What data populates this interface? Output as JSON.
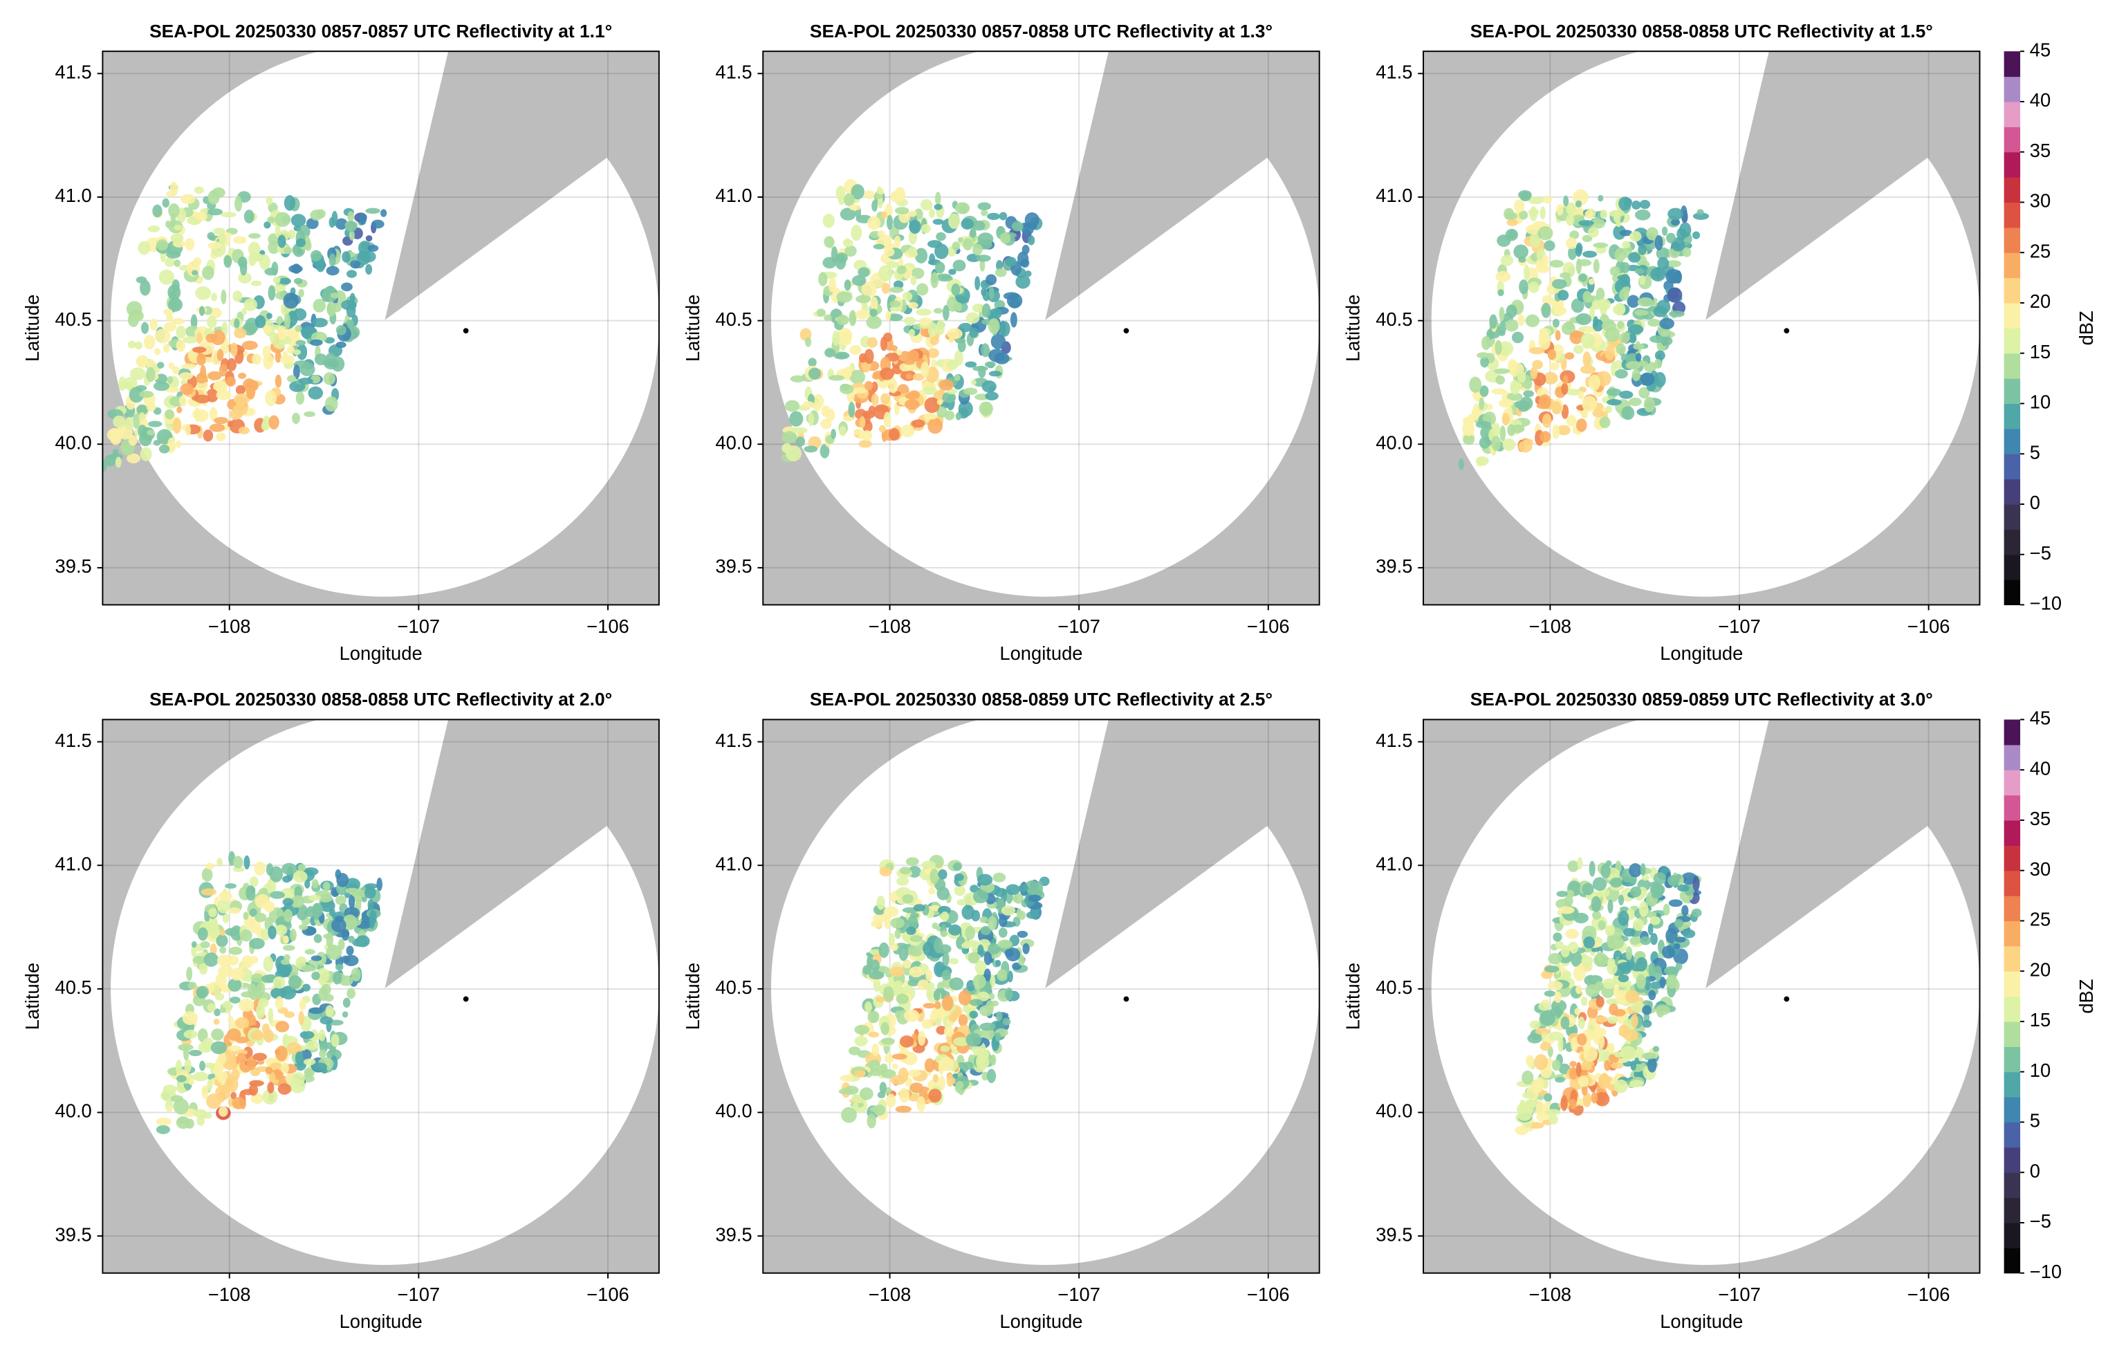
{
  "chart_data": [
    {
      "type": "ppi",
      "title": "SEA-POL 20250330 0857-0857 UTC Reflectivity at 1.1°",
      "xlabel": "Longitude",
      "ylabel": "Latitude",
      "xlim": [
        -108.67,
        -105.73
      ],
      "ylim": [
        39.35,
        41.59
      ],
      "xticks": [
        {
          "value": -108,
          "label": "−108"
        },
        {
          "value": -107,
          "label": "−107"
        },
        {
          "value": -106,
          "label": "−106"
        }
      ],
      "yticks": [
        39.5,
        {
          "value": 40,
          "label": "40.0"
        },
        40.5,
        {
          "value": 41,
          "label": "41.0"
        },
        41.5
      ],
      "grid": true
    },
    {
      "type": "ppi",
      "title": "SEA-POL 20250330 0857-0858 UTC Reflectivity at 1.3°",
      "xlabel": "Longitude",
      "ylabel": "Latitude",
      "xlim": [
        -108.67,
        -105.73
      ],
      "ylim": [
        39.35,
        41.59
      ],
      "xticks": [
        {
          "value": -108,
          "label": "−108"
        },
        {
          "value": -107,
          "label": "−107"
        },
        {
          "value": -106,
          "label": "−106"
        }
      ],
      "yticks": [
        39.5,
        {
          "value": 40,
          "label": "40.0"
        },
        40.5,
        {
          "value": 41,
          "label": "41.0"
        },
        41.5
      ],
      "grid": true
    },
    {
      "type": "ppi",
      "title": "SEA-POL 20250330 0858-0858 UTC Reflectivity at 1.5°",
      "xlabel": "Longitude",
      "ylabel": "Latitude",
      "xlim": [
        -108.67,
        -105.73
      ],
      "ylim": [
        39.35,
        41.59
      ],
      "xticks": [
        {
          "value": -108,
          "label": "−108"
        },
        {
          "value": -107,
          "label": "−107"
        },
        {
          "value": -106,
          "label": "−106"
        }
      ],
      "yticks": [
        39.5,
        {
          "value": 40,
          "label": "40.0"
        },
        40.5,
        {
          "value": 41,
          "label": "41.0"
        },
        41.5
      ],
      "grid": true,
      "colorbar": {
        "label": "dBZ",
        "lim": [
          -10,
          45
        ],
        "ticks": [
          {
            "value": -10,
            "label": "−10"
          },
          {
            "value": -5,
            "label": "−5"
          },
          0,
          5,
          10,
          15,
          20,
          25,
          30,
          35,
          40,
          45
        ],
        "colors": [
          "#050505",
          "#1a1720",
          "#2b2536",
          "#3a3352",
          "#45407a",
          "#4a62a8",
          "#3f86b0",
          "#4fa7a8",
          "#7cc3a2",
          "#b0de9f",
          "#def2a5",
          "#fbf1a6",
          "#fdd483",
          "#f9ad63",
          "#ee8250",
          "#dd5241",
          "#c8323e",
          "#b01a58",
          "#d35795",
          "#e59dc8",
          "#a98ac6",
          "#4a1456"
        ]
      }
    },
    {
      "type": "ppi",
      "title": "SEA-POL 20250330 0858-0858 UTC Reflectivity at 2.0°",
      "xlabel": "Longitude",
      "ylabel": "Latitude",
      "xlim": [
        -108.67,
        -105.73
      ],
      "ylim": [
        39.35,
        41.59
      ],
      "xticks": [
        {
          "value": -108,
          "label": "−108"
        },
        {
          "value": -107,
          "label": "−107"
        },
        {
          "value": -106,
          "label": "−106"
        }
      ],
      "yticks": [
        39.5,
        {
          "value": 40,
          "label": "40.0"
        },
        40.5,
        {
          "value": 41,
          "label": "41.0"
        },
        41.5
      ],
      "grid": true
    },
    {
      "type": "ppi",
      "title": "SEA-POL 20250330 0858-0859 UTC Reflectivity at 2.5°",
      "xlabel": "Longitude",
      "ylabel": "Latitude",
      "xlim": [
        -108.67,
        -105.73
      ],
      "ylim": [
        39.35,
        41.59
      ],
      "xticks": [
        {
          "value": -108,
          "label": "−108"
        },
        {
          "value": -107,
          "label": "−107"
        },
        {
          "value": -106,
          "label": "−106"
        }
      ],
      "yticks": [
        39.5,
        {
          "value": 40,
          "label": "40.0"
        },
        40.5,
        {
          "value": 41,
          "label": "41.0"
        },
        41.5
      ],
      "grid": true
    },
    {
      "type": "ppi",
      "title": "SEA-POL 20250330 0859-0859 UTC Reflectivity at 3.0°",
      "xlabel": "Longitude",
      "ylabel": "Latitude",
      "xlim": [
        -108.67,
        -105.73
      ],
      "ylim": [
        39.35,
        41.59
      ],
      "xticks": [
        {
          "value": -108,
          "label": "−108"
        },
        {
          "value": -107,
          "label": "−107"
        },
        {
          "value": -106,
          "label": "−106"
        }
      ],
      "yticks": [
        39.5,
        {
          "value": 40,
          "label": "40.0"
        },
        40.5,
        {
          "value": 41,
          "label": "41.0"
        },
        41.5
      ],
      "grid": true,
      "colorbar": {
        "label": "dBZ",
        "lim": [
          -10,
          45
        ],
        "ticks": [
          {
            "value": -10,
            "label": "−10"
          },
          {
            "value": -5,
            "label": "−5"
          },
          0,
          5,
          10,
          15,
          20,
          25,
          30,
          35,
          40,
          45
        ],
        "colors": [
          "#050505",
          "#1a1720",
          "#2b2536",
          "#3a3352",
          "#45407a",
          "#4a62a8",
          "#3f86b0",
          "#4fa7a8",
          "#7cc3a2",
          "#b0de9f",
          "#def2a5",
          "#fbf1a6",
          "#fdd483",
          "#f9ad63",
          "#ee8250",
          "#dd5241",
          "#c8323e",
          "#b01a58",
          "#d35795",
          "#e59dc8",
          "#a98ac6",
          "#4a1456"
        ]
      }
    }
  ]
}
